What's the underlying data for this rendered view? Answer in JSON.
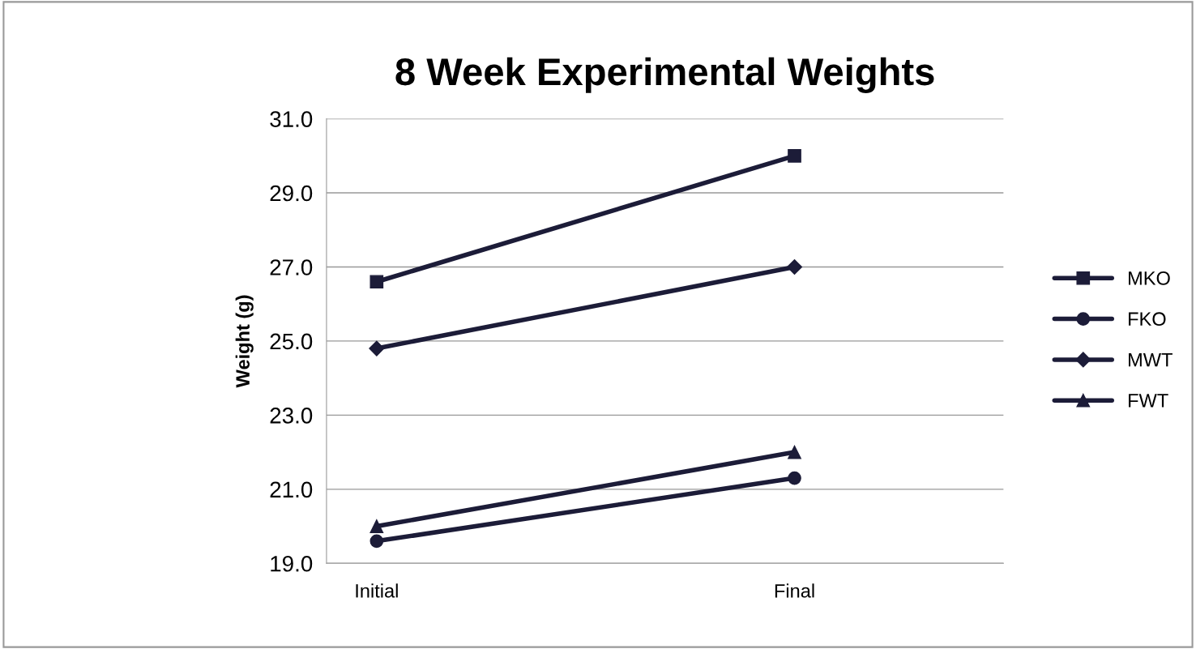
{
  "chart_data": {
    "type": "line",
    "title": "8 Week Experimental Weights",
    "ylabel": "Weight (g)",
    "categories": [
      "Initial",
      "Final"
    ],
    "series": [
      {
        "name": "MKO",
        "color": "#1c1c38",
        "marker": "square",
        "values": [
          26.6,
          30.0
        ]
      },
      {
        "name": "FKO",
        "color": "#1c1c38",
        "marker": "circle",
        "values": [
          19.6,
          21.3
        ]
      },
      {
        "name": "MWT",
        "color": "#1c1c38",
        "marker": "diamond",
        "values": [
          24.8,
          27.0
        ]
      },
      {
        "name": "FWT",
        "color": "#1c1c38",
        "marker": "triangle",
        "values": [
          20.0,
          22.0
        ]
      }
    ],
    "ylim": [
      19,
      31
    ],
    "yticks": [
      {
        "value": 19,
        "label": "19.0"
      },
      {
        "value": 21,
        "label": "21.0"
      },
      {
        "value": 23,
        "label": "23.0"
      },
      {
        "value": 25,
        "label": "25.0"
      },
      {
        "value": 27,
        "label": "27.0"
      },
      {
        "value": 29,
        "label": "29.0"
      },
      {
        "value": 31,
        "label": "31.0"
      }
    ],
    "grid": "y",
    "legend": "right",
    "line_style": "solid"
  }
}
